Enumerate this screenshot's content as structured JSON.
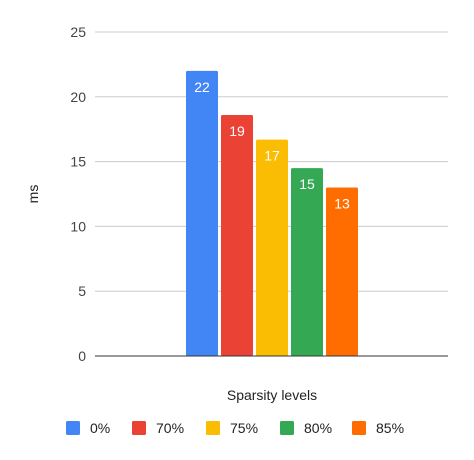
{
  "chart_data": {
    "type": "bar",
    "title": "",
    "xlabel": "Sparsity levels",
    "ylabel": "ms",
    "ylim": [
      0,
      25
    ],
    "yticks": [
      0,
      5,
      10,
      15,
      20,
      25
    ],
    "grid": true,
    "legend_position": "bottom",
    "categories": [
      ""
    ],
    "series": [
      {
        "name": "0%",
        "values": [
          22.0
        ],
        "label": "22",
        "color": "#4285F4"
      },
      {
        "name": "70%",
        "values": [
          18.6
        ],
        "label": "19",
        "color": "#EA4335"
      },
      {
        "name": "75%",
        "values": [
          16.7
        ],
        "label": "17",
        "color": "#FBBC04"
      },
      {
        "name": "80%",
        "values": [
          14.5
        ],
        "label": "15",
        "color": "#34A853"
      },
      {
        "name": "85%",
        "values": [
          13.0
        ],
        "label": "13",
        "color": "#FF6D01"
      }
    ]
  }
}
